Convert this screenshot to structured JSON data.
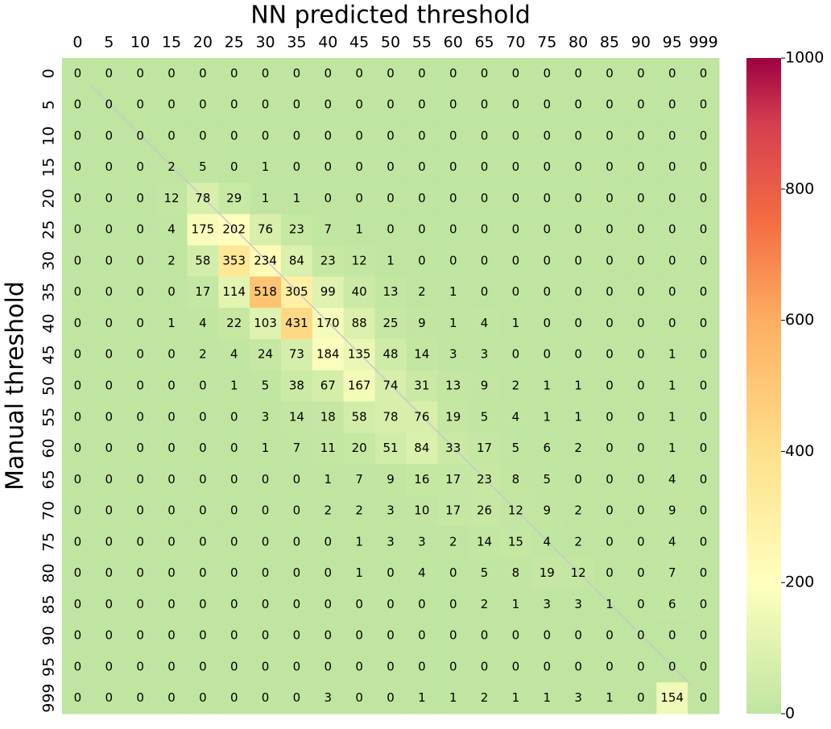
{
  "chart_data": {
    "type": "heatmap",
    "title": "NN predicted threshold",
    "ylabel": "Manual threshold",
    "x_categories": [
      "0",
      "5",
      "10",
      "15",
      "20",
      "25",
      "30",
      "35",
      "40",
      "45",
      "50",
      "55",
      "60",
      "65",
      "70",
      "75",
      "80",
      "85",
      "90",
      "95",
      "999"
    ],
    "y_categories": [
      "0",
      "5",
      "10",
      "15",
      "20",
      "25",
      "30",
      "35",
      "40",
      "45",
      "50",
      "55",
      "60",
      "65",
      "70",
      "75",
      "80",
      "85",
      "90",
      "95",
      "999"
    ],
    "values": [
      [
        0,
        0,
        0,
        0,
        0,
        0,
        0,
        0,
        0,
        0,
        0,
        0,
        0,
        0,
        0,
        0,
        0,
        0,
        0,
        0,
        0
      ],
      [
        0,
        0,
        0,
        0,
        0,
        0,
        0,
        0,
        0,
        0,
        0,
        0,
        0,
        0,
        0,
        0,
        0,
        0,
        0,
        0,
        0
      ],
      [
        0,
        0,
        0,
        0,
        0,
        0,
        0,
        0,
        0,
        0,
        0,
        0,
        0,
        0,
        0,
        0,
        0,
        0,
        0,
        0,
        0
      ],
      [
        0,
        0,
        0,
        2,
        5,
        0,
        1,
        0,
        0,
        0,
        0,
        0,
        0,
        0,
        0,
        0,
        0,
        0,
        0,
        0,
        0
      ],
      [
        0,
        0,
        0,
        12,
        78,
        29,
        1,
        1,
        0,
        0,
        0,
        0,
        0,
        0,
        0,
        0,
        0,
        0,
        0,
        0,
        0
      ],
      [
        0,
        0,
        0,
        4,
        175,
        202,
        76,
        23,
        7,
        1,
        0,
        0,
        0,
        0,
        0,
        0,
        0,
        0,
        0,
        0,
        0
      ],
      [
        0,
        0,
        0,
        2,
        58,
        353,
        234,
        84,
        23,
        12,
        1,
        0,
        0,
        0,
        0,
        0,
        0,
        0,
        0,
        0,
        0
      ],
      [
        0,
        0,
        0,
        0,
        17,
        114,
        518,
        305,
        99,
        40,
        13,
        2,
        1,
        0,
        0,
        0,
        0,
        0,
        0,
        0,
        0
      ],
      [
        0,
        0,
        0,
        1,
        4,
        22,
        103,
        431,
        170,
        88,
        25,
        9,
        1,
        4,
        1,
        0,
        0,
        0,
        0,
        0,
        0
      ],
      [
        0,
        0,
        0,
        0,
        2,
        4,
        24,
        73,
        184,
        135,
        48,
        14,
        3,
        3,
        0,
        0,
        0,
        0,
        0,
        1,
        0
      ],
      [
        0,
        0,
        0,
        0,
        0,
        1,
        5,
        38,
        67,
        167,
        74,
        31,
        13,
        9,
        2,
        1,
        1,
        0,
        0,
        1,
        0
      ],
      [
        0,
        0,
        0,
        0,
        0,
        0,
        3,
        14,
        18,
        58,
        78,
        76,
        19,
        5,
        4,
        1,
        1,
        0,
        0,
        1,
        0
      ],
      [
        0,
        0,
        0,
        0,
        0,
        0,
        1,
        7,
        11,
        20,
        51,
        84,
        33,
        17,
        5,
        6,
        2,
        0,
        0,
        1,
        0
      ],
      [
        0,
        0,
        0,
        0,
        0,
        0,
        0,
        0,
        1,
        7,
        9,
        16,
        17,
        23,
        8,
        5,
        0,
        0,
        0,
        4,
        0
      ],
      [
        0,
        0,
        0,
        0,
        0,
        0,
        0,
        0,
        2,
        2,
        3,
        10,
        17,
        26,
        12,
        9,
        2,
        0,
        0,
        9,
        0
      ],
      [
        0,
        0,
        0,
        0,
        0,
        0,
        0,
        0,
        0,
        1,
        3,
        3,
        2,
        14,
        15,
        4,
        2,
        0,
        0,
        4,
        0
      ],
      [
        0,
        0,
        0,
        0,
        0,
        0,
        0,
        0,
        0,
        1,
        0,
        4,
        0,
        5,
        8,
        19,
        12,
        0,
        0,
        7,
        0
      ],
      [
        0,
        0,
        0,
        0,
        0,
        0,
        0,
        0,
        0,
        0,
        0,
        0,
        0,
        2,
        1,
        3,
        3,
        1,
        0,
        6,
        0
      ],
      [
        0,
        0,
        0,
        0,
        0,
        0,
        0,
        0,
        0,
        0,
        0,
        0,
        0,
        0,
        0,
        0,
        0,
        0,
        0,
        0,
        0
      ],
      [
        0,
        0,
        0,
        0,
        0,
        0,
        0,
        0,
        0,
        0,
        0,
        0,
        0,
        0,
        0,
        0,
        0,
        0,
        0,
        0,
        0
      ],
      [
        0,
        0,
        0,
        0,
        0,
        0,
        0,
        0,
        3,
        0,
        0,
        1,
        1,
        2,
        1,
        1,
        3,
        1,
        0,
        154,
        0
      ]
    ],
    "zlim": [
      0,
      1000
    ],
    "zticks": [
      0,
      200,
      400,
      600,
      800,
      1000
    ],
    "colorscale": [
      [
        0,
        "#bfe5a0"
      ],
      [
        0.2,
        "#ffffbe"
      ],
      [
        0.4,
        "#fee08b"
      ],
      [
        0.6,
        "#fdae61"
      ],
      [
        0.75,
        "#f46d43"
      ],
      [
        0.9,
        "#d53e4f"
      ],
      [
        1,
        "#9e0142"
      ]
    ]
  }
}
